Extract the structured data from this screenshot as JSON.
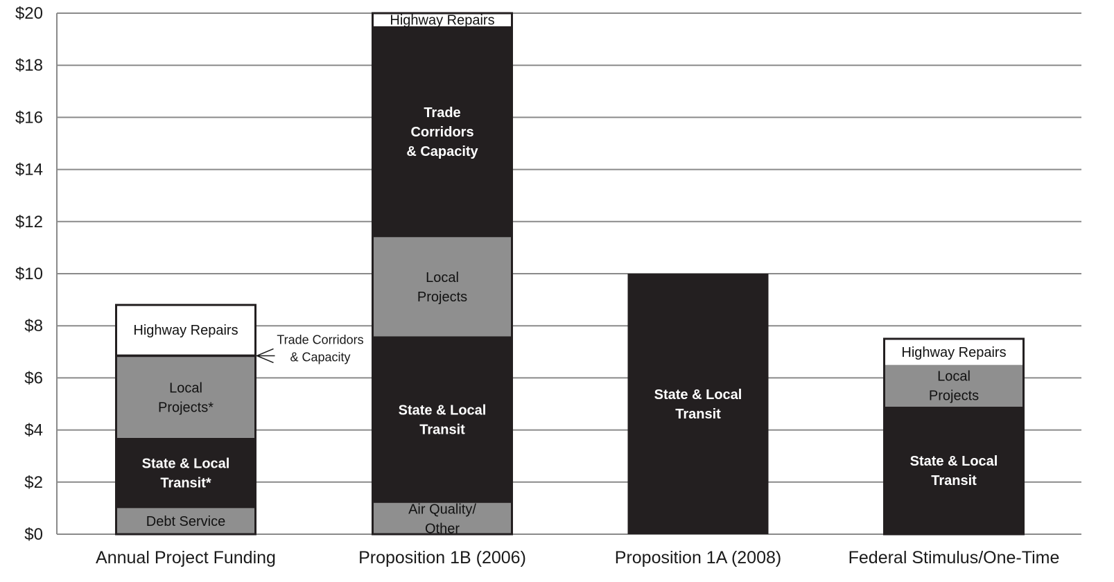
{
  "chart_data": {
    "type": "bar",
    "stacked": true,
    "title": "",
    "xlabel": "",
    "ylabel": "",
    "ylim": [
      0,
      20
    ],
    "yticks": [
      "$0",
      "$2",
      "$4",
      "$6",
      "$8",
      "$10",
      "$12",
      "$14",
      "$16",
      "$18",
      "$20"
    ],
    "grid": true,
    "legend": "none",
    "categories": [
      "Annual Project Funding",
      "Proposition 1B (2006)",
      "Proposition 1A (2008)",
      "Federal Stimulus/One-Time"
    ],
    "colors": {
      "light_gray": "#8f8f8f",
      "black": "#231f20",
      "white": "#ffffff",
      "grid": "#8a8a8a"
    },
    "bars": [
      {
        "category": "Annual Project Funding",
        "segments": [
          {
            "label": "Debt Service",
            "value": 1.0,
            "color": "#8f8f8f",
            "text_color": "#111111",
            "bold": false
          },
          {
            "label": "State & Local Transit*",
            "value": 2.7,
            "color": "#231f20",
            "text_color": "#ffffff",
            "bold": true
          },
          {
            "label": "Local Projects*",
            "value": 3.1,
            "color": "#8f8f8f",
            "text_color": "#111111",
            "bold": false
          },
          {
            "label": "Trade Corridors & Capacity",
            "value": 0.1,
            "color": "#231f20",
            "text_color": "#ffffff",
            "bold": false
          },
          {
            "label": "Highway Repairs",
            "value": 1.9,
            "color": "#ffffff",
            "text_color": "#111111",
            "bold": false
          }
        ]
      },
      {
        "category": "Proposition 1B (2006)",
        "segments": [
          {
            "label": "Air Quality/ Other",
            "value": 1.2,
            "color": "#8f8f8f",
            "text_color": "#111111",
            "bold": false
          },
          {
            "label": "State & Local Transit",
            "value": 6.4,
            "color": "#231f20",
            "text_color": "#ffffff",
            "bold": true
          },
          {
            "label": "Local Projects",
            "value": 3.8,
            "color": "#8f8f8f",
            "text_color": "#111111",
            "bold": false
          },
          {
            "label": "Trade Corridors & Capacity",
            "value": 8.1,
            "color": "#231f20",
            "text_color": "#ffffff",
            "bold": true
          },
          {
            "label": "Highway Repairs",
            "value": 0.5,
            "color": "#ffffff",
            "text_color": "#111111",
            "bold": false
          }
        ]
      },
      {
        "category": "Proposition 1A (2008)",
        "segments": [
          {
            "label": "State & Local Transit",
            "value": 10.0,
            "color": "#231f20",
            "text_color": "#ffffff",
            "bold": true
          }
        ]
      },
      {
        "category": "Federal Stimulus/One-Time",
        "segments": [
          {
            "label": "State & Local Transit",
            "value": 4.9,
            "color": "#231f20",
            "text_color": "#ffffff",
            "bold": true
          },
          {
            "label": "Local Projects",
            "value": 1.6,
            "color": "#8f8f8f",
            "text_color": "#111111",
            "bold": false
          },
          {
            "label": "Highway Repairs",
            "value": 1.0,
            "color": "#ffffff",
            "text_color": "#111111",
            "bold": false
          }
        ]
      }
    ],
    "annotations": [
      {
        "text": "Trade Corridors & Capacity",
        "points_to": "Annual Project Funding",
        "y_value": 6.85
      }
    ]
  }
}
